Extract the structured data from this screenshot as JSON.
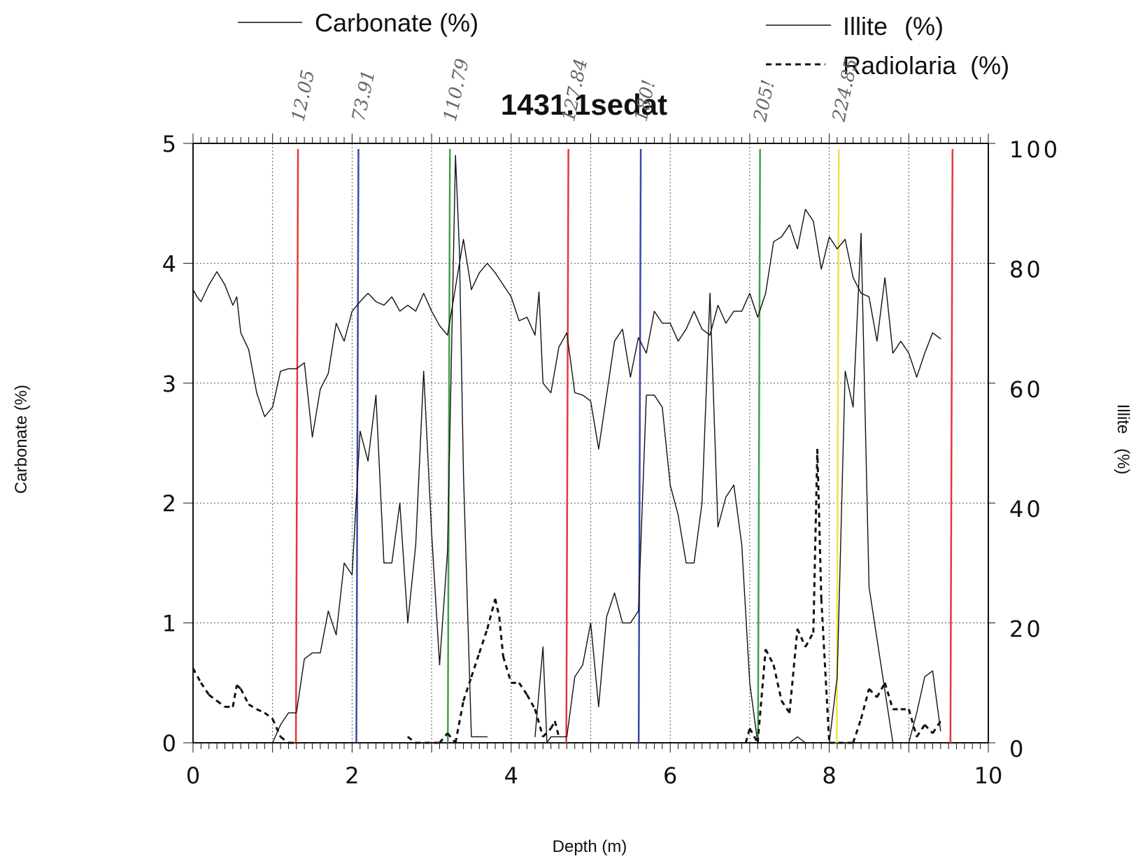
{
  "chart_data": {
    "type": "line",
    "title": "1431.1sedat",
    "xlabel": "Depth (m)",
    "ylabel": "Carbonate (%)",
    "ylabel_right": "Illite (%)",
    "xlim": [
      0,
      10
    ],
    "ylim": [
      0,
      5
    ],
    "ylim_right": [
      0,
      100
    ],
    "x_ticks": [
      "0",
      "2",
      "4",
      "6",
      "8",
      "10"
    ],
    "y_ticks": [
      "0",
      "1",
      "2",
      "3",
      "4",
      "5"
    ],
    "y_ticks_right": [
      "0",
      "20",
      "40",
      "60",
      "80",
      "100"
    ],
    "grid": true,
    "legend": [
      {
        "label": "Carbonate (%)",
        "style": "solid"
      },
      {
        "label": "Illite (%)",
        "style": "solid"
      },
      {
        "label": "Radiolaria (%)",
        "style": "dashed"
      }
    ],
    "series": [
      {
        "name": "Carbonate (%)",
        "axis": "left",
        "style": "solid",
        "x": [
          0.0,
          0.05,
          0.1,
          0.2,
          0.3,
          0.4,
          0.5,
          0.55,
          0.6,
          0.7,
          0.8,
          0.9,
          1.0,
          1.1,
          1.2,
          1.3,
          1.4,
          1.5,
          1.6,
          1.7,
          1.8,
          1.9,
          2.0,
          2.1,
          2.2,
          2.3,
          2.4,
          2.5,
          2.6,
          2.7,
          2.8,
          2.9,
          3.0,
          3.1,
          3.2,
          3.3,
          3.4,
          3.5,
          3.6,
          3.7,
          3.8,
          3.9,
          4.0,
          4.1,
          4.2,
          4.3,
          4.35,
          4.4,
          4.5,
          4.6,
          4.7,
          4.8,
          4.9,
          5.0,
          5.1,
          5.2,
          5.3,
          5.4,
          5.5,
          5.6,
          5.7,
          5.8,
          5.9,
          6.0,
          6.1,
          6.2,
          6.3,
          6.4,
          6.5,
          6.6,
          6.7,
          6.8,
          6.9,
          7.0,
          7.1,
          7.2,
          7.3,
          7.4,
          7.5,
          7.6,
          7.7,
          7.8,
          7.9,
          8.0,
          8.1,
          8.2,
          8.3,
          8.4,
          8.5,
          8.6,
          8.7,
          8.8,
          8.9,
          9.0,
          9.1,
          9.2,
          9.3,
          9.4
        ],
        "values": [
          3.78,
          3.72,
          3.68,
          3.82,
          3.93,
          3.82,
          3.65,
          3.72,
          3.42,
          3.28,
          2.92,
          2.72,
          2.8,
          3.1,
          3.12,
          3.12,
          3.17,
          2.55,
          2.95,
          3.08,
          3.5,
          3.35,
          3.6,
          3.68,
          3.75,
          3.68,
          3.65,
          3.72,
          3.6,
          3.65,
          3.6,
          3.75,
          3.6,
          3.48,
          3.4,
          3.8,
          4.2,
          3.78,
          3.92,
          4.0,
          3.92,
          3.82,
          3.72,
          3.52,
          3.55,
          3.4,
          3.76,
          3.0,
          2.92,
          3.3,
          3.42,
          2.92,
          2.9,
          2.85,
          2.45,
          2.9,
          3.35,
          3.45,
          3.05,
          3.38,
          3.25,
          3.6,
          3.5,
          3.5,
          3.35,
          3.45,
          3.6,
          3.45,
          3.4,
          3.65,
          3.5,
          3.6,
          3.6,
          3.75,
          3.55,
          3.75,
          4.18,
          4.22,
          4.32,
          4.12,
          4.45,
          4.35,
          3.95,
          4.22,
          4.12,
          4.2,
          3.88,
          3.75,
          3.72,
          3.35,
          3.88,
          3.25,
          3.35,
          3.25,
          3.05,
          3.25,
          3.42,
          3.37
        ]
      },
      {
        "name": "Illite (%)",
        "axis": "right",
        "style": "solid",
        "x": [
          1.0,
          1.1,
          1.2,
          1.3,
          1.4,
          1.5,
          1.6,
          1.7,
          1.8,
          1.9,
          2.0,
          2.1,
          2.2,
          2.3,
          2.4,
          2.5,
          2.6,
          2.7,
          2.8,
          2.9,
          3.0,
          3.1,
          3.2,
          3.3,
          3.35,
          3.4,
          3.5,
          3.6,
          3.7,
          4.3,
          4.4,
          4.45,
          4.5,
          4.6,
          4.7,
          4.8,
          4.9,
          5.0,
          5.1,
          5.2,
          5.3,
          5.4,
          5.5,
          5.6,
          5.7,
          5.8,
          5.9,
          6.0,
          6.1,
          6.2,
          6.3,
          6.4,
          6.5,
          6.6,
          6.7,
          6.8,
          6.9,
          7.0,
          7.1,
          7.2,
          7.5,
          7.6,
          7.7,
          7.9,
          8.0,
          8.1,
          8.2,
          8.3,
          8.4,
          8.5,
          8.8,
          9.0,
          9.1,
          9.2,
          9.3,
          9.4
        ],
        "values": [
          0,
          3,
          5,
          5,
          14,
          15,
          15,
          22,
          18,
          30,
          28,
          52,
          47,
          58,
          30,
          30,
          40,
          20,
          33,
          62,
          35,
          13,
          32,
          98,
          82,
          45,
          1,
          1,
          1,
          1,
          16,
          0,
          1,
          1,
          1,
          11,
          13,
          20,
          6,
          21,
          25,
          20,
          20,
          22,
          58,
          58,
          56,
          43,
          38,
          30,
          30,
          40,
          75,
          36,
          41,
          43,
          33,
          10,
          0,
          0,
          0,
          1,
          0,
          0,
          0,
          11,
          62,
          56,
          85,
          26,
          0,
          0,
          5,
          11,
          12,
          2
        ]
      },
      {
        "name": "Radiolaria (%)",
        "axis": "left",
        "style": "dashed",
        "x": [
          0.0,
          0.1,
          0.2,
          0.3,
          0.4,
          0.5,
          0.55,
          0.6,
          0.7,
          0.8,
          0.9,
          1.0,
          1.1,
          1.2,
          1.3,
          2.7,
          2.8,
          3.1,
          3.2,
          3.3,
          3.4,
          3.5,
          3.6,
          3.7,
          3.8,
          3.85,
          3.9,
          4.0,
          4.1,
          4.2,
          4.3,
          4.4,
          4.5,
          4.55,
          4.6,
          6.95,
          7.0,
          7.1,
          7.2,
          7.3,
          7.4,
          7.5,
          7.6,
          7.7,
          7.8,
          7.85,
          7.9,
          8.0,
          8.3,
          8.4,
          8.5,
          8.6,
          8.7,
          8.8,
          8.9,
          9.0,
          9.1,
          9.2,
          9.3,
          9.4
        ],
        "values": [
          0.62,
          0.5,
          0.4,
          0.35,
          0.3,
          0.3,
          0.48,
          0.45,
          0.32,
          0.28,
          0.25,
          0.2,
          0.05,
          0.0,
          0.0,
          0.05,
          0.0,
          0.0,
          0.08,
          0.0,
          0.35,
          0.55,
          0.75,
          0.95,
          1.2,
          1.05,
          0.72,
          0.5,
          0.5,
          0.4,
          0.28,
          0.05,
          0.12,
          0.18,
          0.05,
          0.0,
          0.12,
          0.0,
          0.78,
          0.65,
          0.35,
          0.25,
          0.95,
          0.8,
          0.92,
          2.45,
          1.2,
          0.0,
          0.0,
          0.2,
          0.45,
          0.38,
          0.5,
          0.28,
          0.28,
          0.28,
          0.05,
          0.15,
          0.08,
          0.18
        ]
      }
    ],
    "markers": [
      {
        "depth": 1.32,
        "color": "#e53935",
        "annotation": "12.05"
      },
      {
        "depth": 2.08,
        "color": "#3949ab",
        "annotation": "73.91"
      },
      {
        "depth": 3.23,
        "color": "#43a047",
        "annotation": "110.79"
      },
      {
        "depth": 4.72,
        "color": "#e53935",
        "annotation": "127.84"
      },
      {
        "depth": 5.63,
        "color": "#3949ab",
        "annotation": "180!"
      },
      {
        "depth": 7.13,
        "color": "#43a047",
        "annotation": "205!"
      },
      {
        "depth": 8.12,
        "color": "#f4e04d",
        "annotation": "224.85"
      },
      {
        "depth": 9.55,
        "color": "#e53935",
        "annotation": ""
      }
    ]
  }
}
